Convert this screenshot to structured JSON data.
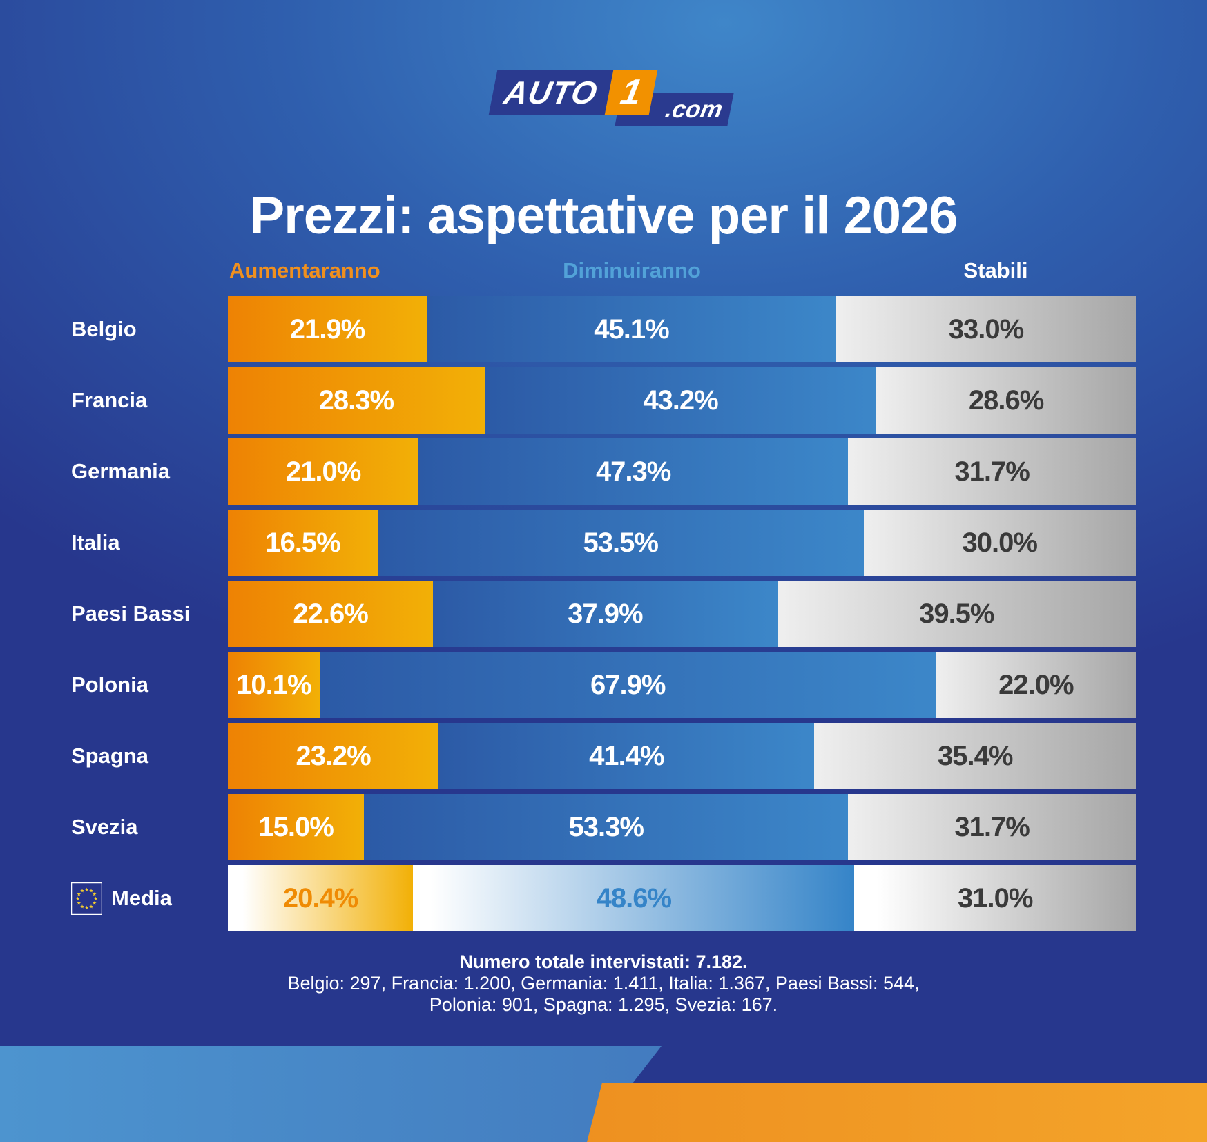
{
  "logo": {
    "brand": "AUTO",
    "one": "1",
    "domain": ".com"
  },
  "title": "Prezzi: aspettative per il 2026",
  "legend": {
    "increase": "Aumentaranno",
    "decrease": "Diminuiranno",
    "stable": "Stabili"
  },
  "chart_data": {
    "type": "bar",
    "orientation": "horizontal",
    "stacked": true,
    "value_suffix": "%",
    "categories": [
      "Belgio",
      "Francia",
      "Germania",
      "Italia",
      "Paesi Bassi",
      "Polonia",
      "Spagna",
      "Svezia",
      "Media"
    ],
    "average_index": 8,
    "average_flag": "eu-flag",
    "series": [
      {
        "name": "Aumentaranno",
        "values": [
          21.9,
          28.3,
          21.0,
          16.5,
          22.6,
          10.1,
          23.2,
          15.0,
          20.4
        ]
      },
      {
        "name": "Diminuiranno",
        "values": [
          45.1,
          43.2,
          47.3,
          53.5,
          37.9,
          67.9,
          41.4,
          53.3,
          48.6
        ]
      },
      {
        "name": "Stabili",
        "values": [
          33.0,
          28.6,
          31.7,
          30.0,
          39.5,
          22.0,
          35.4,
          31.7,
          31.0
        ]
      }
    ],
    "xlim": [
      0,
      100
    ],
    "grid": false,
    "legend_position": "top"
  },
  "footer": {
    "line1": "Numero totale intervistati: 7.182.",
    "line2": "Belgio: 297, Francia: 1.200, Germania: 1.411, Italia: 1.367, Paesi Bassi: 544,",
    "line3": "Polonia: 901, Spagna: 1.295, Svezia: 167."
  },
  "colors": {
    "bar_orange_1": "#ee8204",
    "bar_orange_2": "#f2b006",
    "bar_blue_1": "#2c5aa6",
    "bar_blue_2": "#3c87c9",
    "bar_gray_1": "#efefef",
    "bar_gray_2": "#a6a6a6",
    "header_orange": "#f0901e",
    "header_blue": "#52a2d8",
    "text_dark": "#3a3a3a",
    "media_orange_text": "#ef8b04",
    "media_blue_text": "#3584c8",
    "navy": "#27378d"
  }
}
